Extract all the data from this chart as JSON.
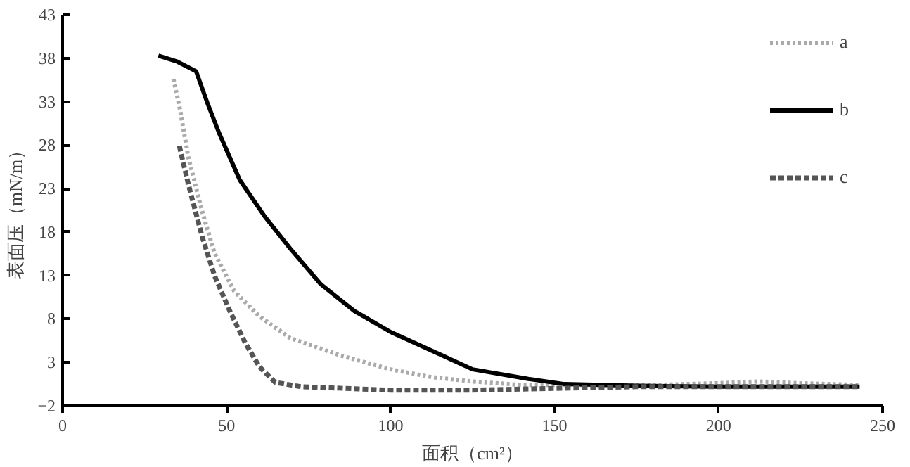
{
  "chart_data": {
    "type": "line",
    "xlabel": "面积（cm²）",
    "ylabel": "表面压（mN/m）",
    "xlim": [
      0,
      250
    ],
    "ylim": [
      -2,
      43
    ],
    "xticks": [
      0,
      50,
      100,
      150,
      200,
      250
    ],
    "yticks": [
      -2,
      3,
      8,
      13,
      18,
      23,
      28,
      33,
      38,
      43
    ],
    "grid": false,
    "legend": "top right",
    "marker": "none",
    "series": [
      {
        "name": "a",
        "color": "#aaaaaa",
        "line_style": "dotted",
        "x": [
          33.8,
          35.6,
          38.4,
          42.6,
          46.3,
          52.3,
          60,
          69.4,
          84.7,
          100,
          112.5,
          125,
          140,
          160,
          180,
          200,
          212,
          225,
          243
        ],
        "values": [
          35.6,
          32.5,
          26.5,
          20.3,
          15.6,
          11.2,
          8.3,
          5.8,
          3.8,
          2.2,
          1.3,
          0.8,
          0.4,
          0.4,
          0.4,
          0.6,
          0.8,
          0.6,
          0.4
        ]
      },
      {
        "name": "b",
        "color": "#000000",
        "line_style": "solid",
        "x": [
          29.2,
          35,
          40.7,
          44,
          47.7,
          54,
          61.6,
          69.4,
          78.7,
          89,
          100,
          115.7,
          125,
          142,
          153,
          175,
          200,
          243
        ],
        "values": [
          38.3,
          37.6,
          36.5,
          33,
          29.4,
          24,
          19.8,
          16.1,
          12,
          8.9,
          6.5,
          3.8,
          2.2,
          1.1,
          0.5,
          0.3,
          0.2,
          0.2
        ]
      },
      {
        "name": "c",
        "color": "#555555",
        "line_style": "dashed",
        "x": [
          35.6,
          38.4,
          42.6,
          46.3,
          51,
          55.6,
          60,
          64.8,
          72.7,
          100,
          125,
          150,
          175,
          200,
          243
        ],
        "values": [
          27.9,
          23.4,
          17.4,
          13,
          8.9,
          5.3,
          2.5,
          0.7,
          0.2,
          -0.2,
          -0.2,
          0,
          0.2,
          0.2,
          0.2
        ]
      }
    ]
  }
}
